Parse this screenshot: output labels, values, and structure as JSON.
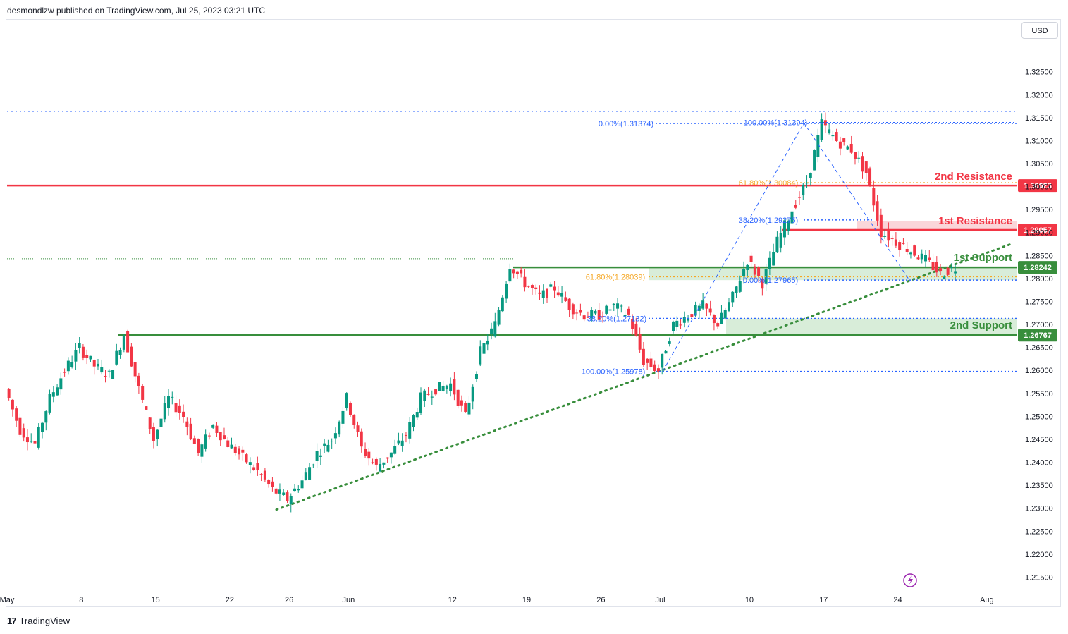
{
  "header": {
    "publisher": "desmondlzw published on TradingView.com, Jul 25, 2023 03:21 UTC"
  },
  "currency_button": "USD",
  "footer": {
    "brand": "TradingView",
    "logo_icon": "tradingview-logo-icon"
  },
  "colors": {
    "bull": "#089981",
    "bear": "#f23645",
    "resistance": "#f23645",
    "support": "#388e3c",
    "support_zone": "#c8e6c9",
    "resistance_zone": "#f8c5c9",
    "fib_blue": "#2962ff",
    "fib_orange": "#f5a623",
    "trendline": "#388e3c"
  },
  "chart_data": {
    "type": "candlestick",
    "symbol_currency": "USD",
    "y_axis": {
      "ylim": [
        1.212,
        1.336
      ],
      "ticks": [
        "1.32500",
        "1.32000",
        "1.31500",
        "1.31000",
        "1.30500",
        "1.30000",
        "1.29500",
        "1.29000",
        "1.28500",
        "1.28000",
        "1.27500",
        "1.27000",
        "1.26500",
        "1.26000",
        "1.25500",
        "1.25000",
        "1.24500",
        "1.24000",
        "1.23500",
        "1.23000",
        "1.22500",
        "1.22000",
        "1.21500"
      ]
    },
    "x_axis": {
      "ticks": [
        {
          "label": "May",
          "index": 0
        },
        {
          "label": "8",
          "index": 5
        },
        {
          "label": "15",
          "index": 10
        },
        {
          "label": "22",
          "index": 15
        },
        {
          "label": "26",
          "index": 19
        },
        {
          "label": "Jun",
          "index": 23
        },
        {
          "label": "12",
          "index": 30
        },
        {
          "label": "19",
          "index": 35
        },
        {
          "label": "26",
          "index": 40
        },
        {
          "label": "Jul",
          "index": 44
        },
        {
          "label": "10",
          "index": 50
        },
        {
          "label": "17",
          "index": 55
        },
        {
          "label": "24",
          "index": 60
        },
        {
          "label": "Aug",
          "index": 66
        }
      ],
      "xlim": [
        0,
        68
      ]
    },
    "price_path": [
      [
        0,
        1.256
      ],
      [
        1,
        1.247
      ],
      [
        2,
        1.244
      ],
      [
        3,
        1.254
      ],
      [
        4,
        1.26
      ],
      [
        5,
        1.265
      ],
      [
        6,
        1.261
      ],
      [
        7,
        1.259
      ],
      [
        8,
        1.2678
      ],
      [
        9,
        1.256
      ],
      [
        10,
        1.245
      ],
      [
        11,
        1.254
      ],
      [
        12,
        1.25
      ],
      [
        13,
        1.242
      ],
      [
        14,
        1.248
      ],
      [
        15,
        1.244
      ],
      [
        16,
        1.241
      ],
      [
        17,
        1.238
      ],
      [
        18,
        1.234
      ],
      [
        19,
        1.232
      ],
      [
        20,
        1.236
      ],
      [
        21,
        1.242
      ],
      [
        22,
        1.245
      ],
      [
        23,
        1.254
      ],
      [
        24,
        1.243
      ],
      [
        25,
        1.239
      ],
      [
        26,
        1.242
      ],
      [
        27,
        1.246
      ],
      [
        28,
        1.254
      ],
      [
        29,
        1.256
      ],
      [
        30,
        1.257
      ],
      [
        31,
        1.25
      ],
      [
        32,
        1.264
      ],
      [
        33,
        1.27
      ],
      [
        34,
        1.283
      ],
      [
        35,
        1.279
      ],
      [
        36,
        1.276
      ],
      [
        37,
        1.278
      ],
      [
        38,
        1.274
      ],
      [
        39,
        1.272
      ],
      [
        40,
        1.272
      ],
      [
        41,
        1.274
      ],
      [
        42,
        1.272
      ],
      [
        43,
        1.262
      ],
      [
        44,
        1.26
      ],
      [
        45,
        1.27
      ],
      [
        46,
        1.272
      ],
      [
        47,
        1.274
      ],
      [
        48,
        1.27
      ],
      [
        49,
        1.276
      ],
      [
        50,
        1.284
      ],
      [
        51,
        1.279
      ],
      [
        52,
        1.288
      ],
      [
        53,
        1.295
      ],
      [
        54,
        1.301
      ],
      [
        55,
        1.3137
      ],
      [
        56,
        1.31
      ],
      [
        57,
        1.308
      ],
      [
        58,
        1.303
      ],
      [
        59,
        1.29
      ],
      [
        60,
        1.288
      ],
      [
        61,
        1.286
      ],
      [
        62,
        1.284
      ],
      [
        63,
        1.281
      ],
      [
        64,
        1.2824
      ]
    ],
    "levels": [
      {
        "name": "2nd Resistance",
        "value": 1.30023,
        "label": "1.30023",
        "kind": "resistance"
      },
      {
        "name": "1st Resistance",
        "value": 1.29057,
        "label": "1.29057",
        "kind": "resistance"
      },
      {
        "name": "1st Support",
        "value": 1.28242,
        "label": "1.28242",
        "kind": "support"
      },
      {
        "name": "2nd Support",
        "value": 1.26767,
        "label": "1.26767",
        "kind": "support"
      }
    ],
    "fib_labels": [
      {
        "text": "0.00%(1.31374)",
        "value": 1.31374,
        "color": "blue"
      },
      {
        "text": "100.00%(1.31394)",
        "value": 1.31394,
        "color": "blue"
      },
      {
        "text": "61.80%(1.30084)",
        "value": 1.30084,
        "color": "orange"
      },
      {
        "text": "38.20%(1.29275)",
        "value": 1.29275,
        "color": "blue"
      },
      {
        "text": "61.80%(1.28039)",
        "value": 1.28039,
        "color": "orange"
      },
      {
        "text": "0.00%(1.27965)",
        "value": 1.27965,
        "color": "blue"
      },
      {
        "text": "38.20%(1.27132)",
        "value": 1.27132,
        "color": "blue"
      },
      {
        "text": "100.00%(1.25978)",
        "value": 1.25978,
        "color": "blue"
      }
    ],
    "annotations": [
      "2nd Resistance",
      "1st Resistance",
      "1st Support",
      "2nd Support"
    ]
  }
}
